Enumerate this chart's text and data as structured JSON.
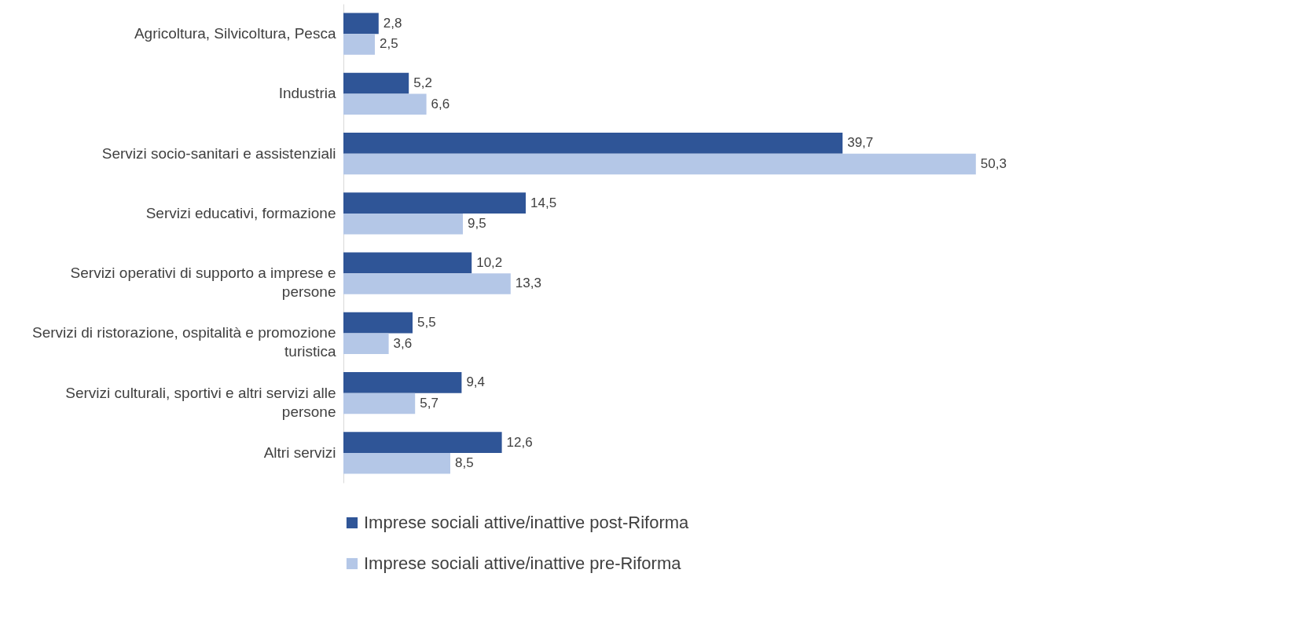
{
  "chart_data": {
    "type": "bar",
    "orientation": "horizontal",
    "tick_labels": "y",
    "legend": "bottom",
    "categories": [
      "Agricoltura, Silvicoltura, Pesca",
      "Industria",
      "Servizi socio-sanitari e assistenziali",
      "Servizi educativi, formazione",
      "Servizi operativi di supporto a imprese e persone",
      "Servizi di ristorazione, ospitalità e promozione turistica",
      "Servizi culturali, sportivi e altri servizi alle persone",
      "Altri servizi"
    ],
    "series": [
      {
        "name": "Imprese sociali attive/inattive  post-Riforma",
        "color": "#2f5597",
        "values": [
          2.8,
          5.2,
          39.7,
          14.5,
          10.2,
          5.5,
          9.4,
          12.6
        ],
        "value_labels": [
          "2,8",
          "5,2",
          "39,7",
          "14,5",
          "10,2",
          "5,5",
          "9,4",
          "12,6"
        ]
      },
      {
        "name": "Imprese sociali attive/inattive pre-Riforma",
        "color": "#b4c7e7",
        "values": [
          2.5,
          6.6,
          50.3,
          9.5,
          13.3,
          3.6,
          5.7,
          8.5
        ],
        "value_labels": [
          "2,5",
          "6,6",
          "50,3",
          "9,5",
          "13,3",
          "3,6",
          "5,7",
          "8,5"
        ]
      }
    ]
  }
}
